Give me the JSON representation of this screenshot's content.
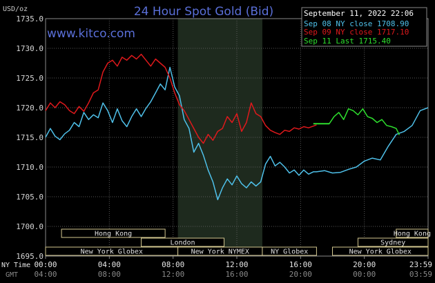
{
  "title": "24 Hour Spot Gold (Bid)",
  "brand": "www.kitco.com",
  "unit": "USD/oz",
  "legend": {
    "date": "September 11, 2022 22:06",
    "entries": [
      {
        "label": "Sep 08 NY close 1708.90",
        "color": "#4fc1ea"
      },
      {
        "label": "Sep 09 NY close 1717.10",
        "color": "#e0191c"
      },
      {
        "label": "Sep 11 Last 1715.40",
        "color": "#2ee02e"
      }
    ]
  },
  "axis_rows": {
    "row1_label": "NY Time",
    "row2_label": "GMT"
  },
  "sessions": [
    {
      "name": "Hong Kong",
      "row": 0,
      "start": 1.0,
      "end": 7.5
    },
    {
      "name": "London",
      "row": 1,
      "start": 6.0,
      "end": 11.2
    },
    {
      "name": "New York Globex",
      "row": 2,
      "start": 0.0,
      "end": 8.3
    },
    {
      "name": "New York NYMEX",
      "row": 2,
      "start": 8.3,
      "end": 13.6
    },
    {
      "name": "NY Globex",
      "row": 2,
      "start": 13.6,
      "end": 17.0
    },
    {
      "name": "Hong Kong",
      "row": 0,
      "start": 22.0,
      "end": 24.0
    },
    {
      "name": "Sydney",
      "row": 1,
      "start": 19.6,
      "end": 24.0
    },
    {
      "name": "New York Globex",
      "row": 2,
      "start": 18.0,
      "end": 24.0
    }
  ],
  "chart_data": {
    "type": "line",
    "title": "24 Hour Spot Gold (Bid)",
    "ylabel": "USD/oz",
    "xlabel": "",
    "ylim": [
      1695,
      1735
    ],
    "xlim": [
      0,
      24
    ],
    "grid": true,
    "legend_position": "top-right",
    "y_ticks": [
      "1735.0",
      "1730.0",
      "1725.0",
      "1720.0",
      "1715.0",
      "1710.0",
      "1705.0",
      "1700.0",
      "1695.0"
    ],
    "x_ticks_ny": [
      "00:00",
      "04:00",
      "08:00",
      "12:00",
      "16:00",
      "20:00",
      "23:59"
    ],
    "x_ticks_gmt": [
      "04:00",
      "08:00",
      "12:00",
      "16:00",
      "20:00",
      "00:00",
      "03:59"
    ],
    "shaded_region": {
      "start": 8.3,
      "end": 13.6
    },
    "series": [
      {
        "name": "Sep 08 NY close 1708.90",
        "color": "#4fc1ea",
        "x": [
          0,
          0.3,
          0.6,
          0.9,
          1.2,
          1.5,
          1.8,
          2.1,
          2.4,
          2.7,
          3.0,
          3.3,
          3.6,
          3.9,
          4.2,
          4.5,
          4.8,
          5.1,
          5.4,
          5.7,
          6.0,
          6.3,
          6.6,
          6.9,
          7.2,
          7.5,
          7.8,
          8.1,
          8.4,
          8.7,
          9.0,
          9.3,
          9.6,
          9.9,
          10.2,
          10.5,
          10.8,
          11.1,
          11.4,
          11.7,
          12.0,
          12.3,
          12.6,
          12.9,
          13.2,
          13.5,
          13.8,
          14.1,
          14.4,
          14.7,
          15.0,
          15.3,
          15.6,
          15.9,
          16.2,
          16.5,
          16.8,
          17.0,
          17.5,
          18.0,
          18.5,
          19.0,
          19.5,
          20.0,
          20.5,
          21.0,
          21.5,
          22.0,
          22.5,
          23.0,
          23.5,
          24.0
        ],
        "values": [
          1715.0,
          1716.5,
          1715.2,
          1714.6,
          1715.6,
          1716.2,
          1717.5,
          1716.8,
          1719.2,
          1718.0,
          1718.8,
          1718.3,
          1720.8,
          1719.5,
          1717.5,
          1719.8,
          1717.8,
          1716.8,
          1718.5,
          1719.8,
          1718.5,
          1719.9,
          1721.0,
          1722.5,
          1724.0,
          1723.0,
          1726.8,
          1723.5,
          1722.0,
          1718.0,
          1716.5,
          1712.5,
          1714.0,
          1712.0,
          1709.5,
          1707.5,
          1704.5,
          1706.5,
          1708.0,
          1707.0,
          1708.5,
          1707.2,
          1706.5,
          1707.5,
          1706.8,
          1707.5,
          1710.5,
          1711.8,
          1710.2,
          1710.8,
          1710.0,
          1709.0,
          1709.5,
          1708.6,
          1709.5,
          1708.8,
          1709.2,
          1709.2,
          1709.4,
          1709.0,
          1709.1,
          1709.6,
          1710.0,
          1711.0,
          1711.5,
          1711.2,
          1713.5,
          1715.5,
          1716.0,
          1717.0,
          1719.5,
          1720.0
        ]
      },
      {
        "name": "Sep 09 NY close 1717.10",
        "color": "#e0191c",
        "x": [
          0,
          0.3,
          0.6,
          0.9,
          1.2,
          1.5,
          1.8,
          2.1,
          2.4,
          2.7,
          3.0,
          3.3,
          3.6,
          3.9,
          4.2,
          4.5,
          4.8,
          5.1,
          5.4,
          5.7,
          6.0,
          6.3,
          6.6,
          6.9,
          7.2,
          7.5,
          7.8,
          8.1,
          8.4,
          8.7,
          9.0,
          9.3,
          9.6,
          9.9,
          10.2,
          10.5,
          10.8,
          11.1,
          11.4,
          11.7,
          12.0,
          12.3,
          12.6,
          12.9,
          13.2,
          13.5,
          13.8,
          14.1,
          14.4,
          14.7,
          15.0,
          15.3,
          15.6,
          15.9,
          16.2,
          16.5,
          16.8,
          17.0
        ],
        "values": [
          1719.5,
          1720.8,
          1720.0,
          1721.0,
          1720.5,
          1719.5,
          1719.0,
          1720.2,
          1719.4,
          1720.8,
          1722.5,
          1723.0,
          1726.0,
          1727.5,
          1728.0,
          1727.0,
          1728.5,
          1728.0,
          1728.8,
          1728.2,
          1729.0,
          1728.0,
          1727.0,
          1728.2,
          1727.5,
          1726.8,
          1725.0,
          1722.5,
          1720.5,
          1719.5,
          1718.0,
          1716.5,
          1715.0,
          1714.0,
          1715.5,
          1714.5,
          1716.0,
          1716.5,
          1718.5,
          1717.5,
          1719.0,
          1716.0,
          1717.5,
          1720.8,
          1719.0,
          1718.5,
          1717.0,
          1716.2,
          1715.8,
          1715.5,
          1716.2,
          1716.0,
          1716.6,
          1716.4,
          1716.8,
          1716.6,
          1716.9,
          1717.1
        ]
      },
      {
        "name": "Sep 11 Last 1715.40",
        "color": "#2ee02e",
        "x": [
          17.0,
          17.4,
          17.8,
          18.1,
          18.4,
          18.7,
          19.0,
          19.3,
          19.6,
          19.9,
          20.2,
          20.5,
          20.8,
          21.1,
          21.4,
          21.7,
          22.0,
          22.2
        ],
        "values": [
          1717.3,
          1717.3,
          1717.3,
          1718.5,
          1719.2,
          1718.0,
          1719.8,
          1719.5,
          1718.8,
          1719.8,
          1718.5,
          1718.2,
          1717.5,
          1718.0,
          1717.0,
          1716.8,
          1716.5,
          1715.4
        ]
      }
    ]
  }
}
